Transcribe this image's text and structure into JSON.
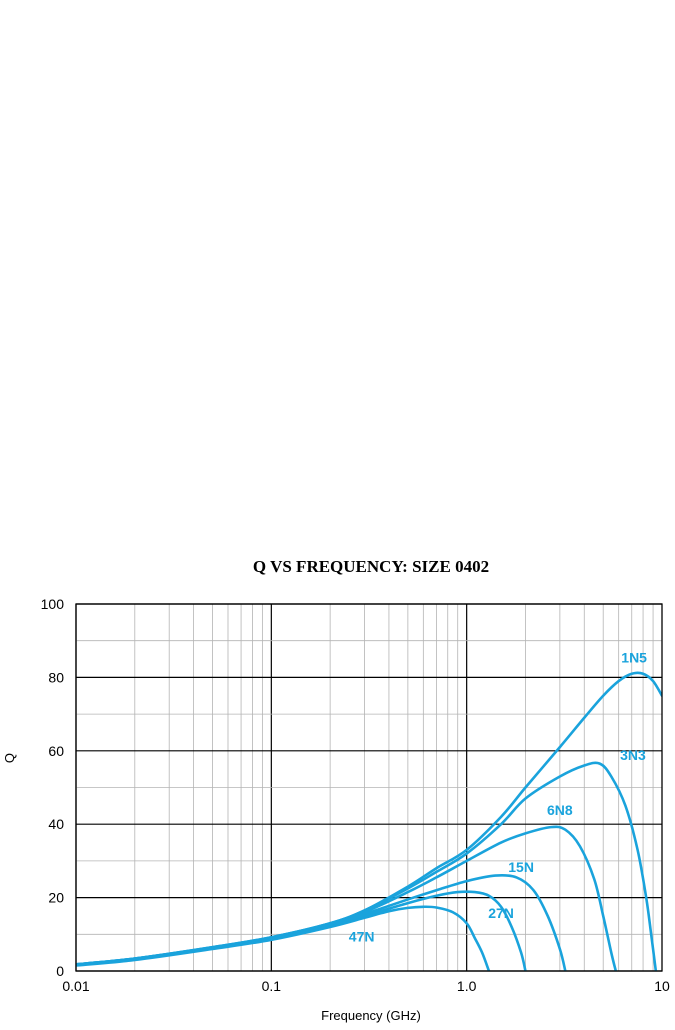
{
  "chart_data": {
    "type": "line",
    "title": "Q VS FREQUENCY: SIZE 0402",
    "xlabel": "Frequency (GHz)",
    "ylabel": "Q",
    "xscale": "log",
    "xlim": [
      0.01,
      10
    ],
    "ylim": [
      0,
      100
    ],
    "x_ticks": [
      0.01,
      0.1,
      1.0,
      10
    ],
    "x_tick_labels": [
      "0.01",
      "0.1",
      "1.0",
      "10"
    ],
    "y_ticks": [
      0,
      20,
      40,
      60,
      80,
      100
    ],
    "y_tick_labels": [
      "0",
      "20",
      "40",
      "60",
      "80",
      "100"
    ],
    "grid": true,
    "line_color": "#1aa3dc",
    "series": [
      {
        "name": "1N5",
        "label_at": [
          7.2,
          84
        ],
        "points": [
          [
            0.01,
            1.8
          ],
          [
            0.02,
            3.4
          ],
          [
            0.05,
            6.5
          ],
          [
            0.1,
            9.2
          ],
          [
            0.2,
            13
          ],
          [
            0.3,
            16.5
          ],
          [
            0.5,
            23
          ],
          [
            0.7,
            28
          ],
          [
            1.0,
            33
          ],
          [
            1.5,
            42
          ],
          [
            2.0,
            50
          ],
          [
            3.0,
            61
          ],
          [
            4.0,
            69
          ],
          [
            5.0,
            75
          ],
          [
            6.0,
            79
          ],
          [
            7.0,
            81
          ],
          [
            8.0,
            81
          ],
          [
            9.0,
            79
          ],
          [
            10,
            75
          ]
        ]
      },
      {
        "name": "3N3",
        "label_at": [
          7.1,
          57.5
        ],
        "points": [
          [
            0.01,
            1.8
          ],
          [
            0.02,
            3.4
          ],
          [
            0.05,
            6.5
          ],
          [
            0.1,
            9.2
          ],
          [
            0.2,
            13
          ],
          [
            0.3,
            16.5
          ],
          [
            0.5,
            22.5
          ],
          [
            0.7,
            27
          ],
          [
            1.0,
            32
          ],
          [
            1.5,
            40
          ],
          [
            2.0,
            47
          ],
          [
            3.0,
            53
          ],
          [
            4.0,
            56
          ],
          [
            4.8,
            56.5
          ],
          [
            5.5,
            53
          ],
          [
            6.5,
            45
          ],
          [
            7.5,
            33
          ],
          [
            8.3,
            20
          ],
          [
            8.8,
            10
          ],
          [
            9.3,
            0
          ]
        ]
      },
      {
        "name": "6N8",
        "label_at": [
          3.0,
          42.5
        ],
        "points": [
          [
            0.01,
            1.8
          ],
          [
            0.02,
            3.4
          ],
          [
            0.05,
            6.4
          ],
          [
            0.1,
            9.0
          ],
          [
            0.2,
            12.8
          ],
          [
            0.3,
            16
          ],
          [
            0.5,
            21.5
          ],
          [
            0.7,
            25.5
          ],
          [
            1.0,
            30
          ],
          [
            1.5,
            35
          ],
          [
            2.0,
            37.5
          ],
          [
            2.7,
            39.2
          ],
          [
            3.2,
            38.5
          ],
          [
            3.8,
            34
          ],
          [
            4.5,
            25
          ],
          [
            5.0,
            15
          ],
          [
            5.5,
            5
          ],
          [
            5.8,
            0
          ]
        ]
      },
      {
        "name": "15N",
        "label_at": [
          1.9,
          27
        ],
        "points": [
          [
            0.01,
            1.7
          ],
          [
            0.02,
            3.3
          ],
          [
            0.05,
            6.3
          ],
          [
            0.1,
            8.8
          ],
          [
            0.2,
            12.5
          ],
          [
            0.3,
            15.5
          ],
          [
            0.5,
            19.5
          ],
          [
            0.7,
            22
          ],
          [
            1.0,
            24.5
          ],
          [
            1.4,
            26
          ],
          [
            1.8,
            25.5
          ],
          [
            2.2,
            22
          ],
          [
            2.6,
            15
          ],
          [
            3.0,
            6
          ],
          [
            3.2,
            0
          ]
        ]
      },
      {
        "name": "27N",
        "label_at": [
          1.5,
          14.5
        ],
        "points": [
          [
            0.01,
            1.6
          ],
          [
            0.02,
            3.2
          ],
          [
            0.05,
            6.2
          ],
          [
            0.1,
            8.7
          ],
          [
            0.2,
            12.2
          ],
          [
            0.3,
            15
          ],
          [
            0.5,
            18.5
          ],
          [
            0.7,
            20.5
          ],
          [
            0.9,
            21.5
          ],
          [
            1.1,
            21.5
          ],
          [
            1.3,
            20.5
          ],
          [
            1.5,
            17.5
          ],
          [
            1.7,
            12
          ],
          [
            1.9,
            5
          ],
          [
            2.0,
            0
          ]
        ]
      },
      {
        "name": "47N",
        "label_at": [
          0.29,
          8
        ],
        "points": [
          [
            0.01,
            1.5
          ],
          [
            0.02,
            3.0
          ],
          [
            0.05,
            6.0
          ],
          [
            0.1,
            8.5
          ],
          [
            0.2,
            12
          ],
          [
            0.3,
            14.5
          ],
          [
            0.4,
            16.3
          ],
          [
            0.5,
            17.2
          ],
          [
            0.6,
            17.5
          ],
          [
            0.7,
            17.3
          ],
          [
            0.85,
            16
          ],
          [
            1.0,
            13
          ],
          [
            1.1,
            9
          ],
          [
            1.2,
            5
          ],
          [
            1.3,
            0
          ]
        ]
      }
    ]
  }
}
